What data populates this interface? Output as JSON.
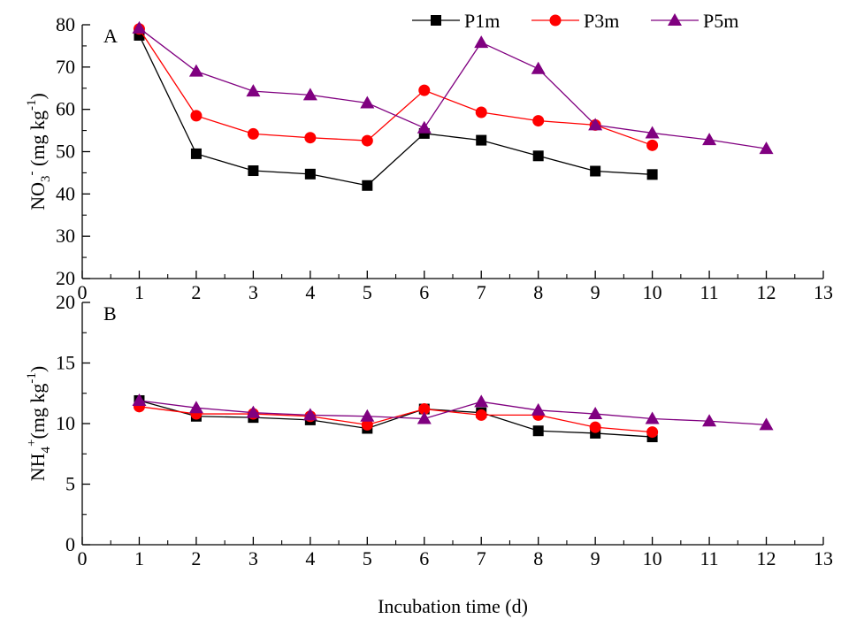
{
  "colors": {
    "P1m": "#000000",
    "P3m": "#ff0000",
    "P5m": "#800080",
    "axis": "#000000"
  },
  "legend": {
    "placement": "top-right",
    "items": [
      {
        "name": "P1m",
        "marker": "square"
      },
      {
        "name": "P3m",
        "marker": "circle"
      },
      {
        "name": "P5m",
        "marker": "triangle"
      }
    ]
  },
  "xaxis": {
    "label": "Incubation time (d)",
    "xlim": [
      0,
      13
    ],
    "ticks": [
      "0",
      "1",
      "2",
      "3",
      "4",
      "5",
      "6",
      "7",
      "8",
      "9",
      "10",
      "11",
      "12",
      "13"
    ]
  },
  "chart_data": [
    {
      "panel_label": "A",
      "type": "line",
      "ylabel": {
        "base": "NO",
        "sub": "3",
        "sup": "-",
        "rest": " (mg kg",
        "sup2": "-1",
        "close": ")"
      },
      "ylim": [
        20,
        80
      ],
      "yticks": [
        "20",
        "30",
        "40",
        "50",
        "60",
        "70",
        "80"
      ],
      "xlim": [
        0,
        13
      ],
      "grid": false,
      "series": [
        {
          "name": "P1m",
          "marker": "square",
          "x": [
            1,
            2,
            3,
            4,
            5,
            6,
            7,
            8,
            9,
            10
          ],
          "y": [
            77.5,
            49.5,
            45.5,
            44.7,
            42.0,
            54.3,
            52.7,
            49.0,
            45.4,
            44.6
          ]
        },
        {
          "name": "P3m",
          "marker": "circle",
          "x": [
            1,
            2,
            3,
            4,
            5,
            6,
            7,
            8,
            9,
            10
          ],
          "y": [
            79.0,
            58.5,
            54.2,
            53.3,
            52.6,
            64.5,
            59.3,
            57.3,
            56.3,
            51.5
          ]
        },
        {
          "name": "P5m",
          "marker": "triangle",
          "x": [
            1,
            2,
            3,
            4,
            5,
            6,
            7,
            8,
            9,
            10,
            11,
            12
          ],
          "y": [
            79.2,
            69.0,
            64.3,
            63.4,
            61.5,
            55.6,
            75.8,
            69.6,
            56.3,
            54.4,
            52.8,
            50.7
          ]
        }
      ]
    },
    {
      "panel_label": "B",
      "type": "line",
      "ylabel": {
        "base": "NH",
        "sub": "4",
        "sup": "+",
        "rest": "(mg kg",
        "sup2": "-1",
        "close": ")"
      },
      "ylim": [
        0,
        20
      ],
      "yticks": [
        "0",
        "5",
        "10",
        "15",
        "20"
      ],
      "xlim": [
        0,
        13
      ],
      "grid": false,
      "series": [
        {
          "name": "P1m",
          "marker": "square",
          "x": [
            1,
            2,
            3,
            4,
            5,
            6,
            7,
            8,
            9,
            10
          ],
          "y": [
            11.9,
            10.6,
            10.5,
            10.3,
            9.6,
            11.2,
            10.9,
            9.4,
            9.2,
            8.9
          ]
        },
        {
          "name": "P3m",
          "marker": "circle",
          "x": [
            1,
            2,
            3,
            4,
            5,
            6,
            7,
            8,
            9,
            10
          ],
          "y": [
            11.4,
            10.8,
            10.8,
            10.6,
            9.9,
            11.2,
            10.7,
            10.7,
            9.7,
            9.3
          ]
        },
        {
          "name": "P5m",
          "marker": "triangle",
          "x": [
            1,
            2,
            3,
            4,
            5,
            6,
            7,
            8,
            9,
            10,
            11,
            12
          ],
          "y": [
            11.9,
            11.3,
            10.9,
            10.7,
            10.6,
            10.4,
            11.8,
            11.1,
            10.8,
            10.4,
            10.2,
            9.9
          ]
        }
      ]
    }
  ]
}
